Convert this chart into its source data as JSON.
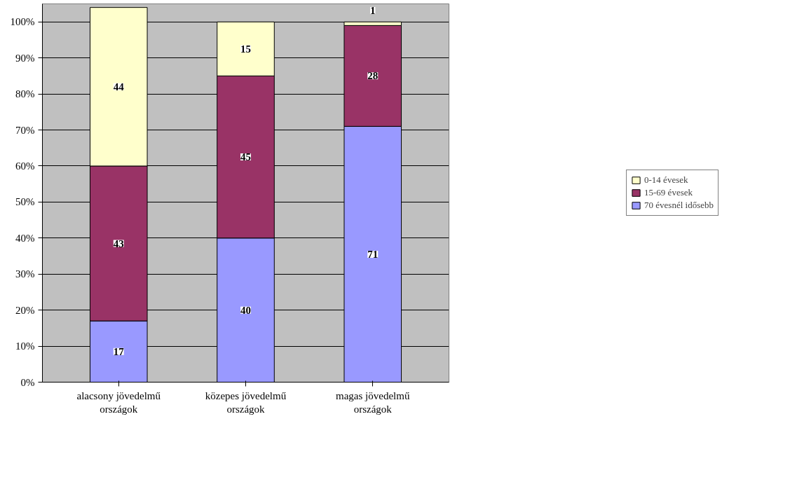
{
  "chart_data": {
    "type": "bar",
    "stacked": true,
    "categories": [
      "alacsony jövedelmű országok",
      "közepes jövedelmű országok",
      "magas jövedelmű országok"
    ],
    "series": [
      {
        "name": "70 évesnél idősebb",
        "color": "#9999ff",
        "values": [
          17,
          40,
          71
        ]
      },
      {
        "name": "15-69 évesek",
        "color": "#993366",
        "values": [
          43,
          45,
          28
        ]
      },
      {
        "name": "0-14 évesek",
        "color": "#ffffcc",
        "values": [
          44,
          15,
          1
        ]
      }
    ],
    "ylim": [
      0,
      105
    ],
    "yticks": [
      {
        "value": 0,
        "label": "0%"
      },
      {
        "value": 10,
        "label": "10%"
      },
      {
        "value": 20,
        "label": "20%"
      },
      {
        "value": 30,
        "label": "30%"
      },
      {
        "value": 40,
        "label": "40%"
      },
      {
        "value": 50,
        "label": "50%"
      },
      {
        "value": 60,
        "label": "60%"
      },
      {
        "value": 70,
        "label": "70%"
      },
      {
        "value": 80,
        "label": "80%"
      },
      {
        "value": 90,
        "label": "90%"
      },
      {
        "value": 100,
        "label": "100%"
      }
    ],
    "grid": "y",
    "legend": "right",
    "data_labels": true
  }
}
